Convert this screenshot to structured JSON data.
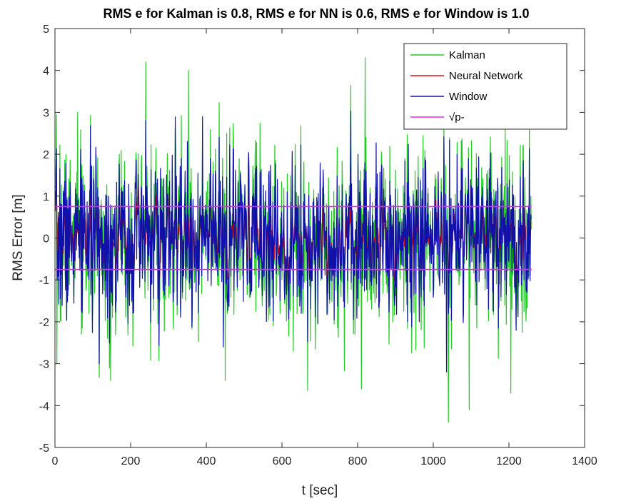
{
  "chart_data": {
    "type": "line",
    "title": "RMS e for Kalman is 0.8, RMS e for NN is 0.6, RMS e for Window is 1.0",
    "xlabel": "t [sec]",
    "ylabel": "RMS Error [m]",
    "xlim": [
      0,
      1400
    ],
    "ylim": [
      -5,
      5
    ],
    "xticks": [
      0,
      200,
      400,
      600,
      800,
      1000,
      1200,
      1400
    ],
    "yticks": [
      -5,
      -4,
      -3,
      -2,
      -1,
      0,
      1,
      2,
      3,
      4,
      5
    ],
    "grid": false,
    "legend_position": "top-right",
    "x_range": [
      0,
      1260
    ],
    "series": [
      {
        "name": "Kalman",
        "color": "#22cc22",
        "approx_rms": 0.8,
        "peaks": [
          [
            60,
            3.0
          ],
          [
            147,
            -3.4
          ],
          [
            240,
            4.2
          ],
          [
            353,
            4.0
          ],
          [
            450,
            -3.4
          ],
          [
            630,
            -2.7
          ],
          [
            820,
            4.3
          ],
          [
            810,
            -3.6
          ],
          [
            1040,
            -4.4
          ],
          [
            1095,
            -4.1
          ],
          [
            1205,
            -3.7
          ],
          [
            1190,
            2.6
          ],
          [
            5,
            -3.0
          ]
        ]
      },
      {
        "name": "Neural Network",
        "color": "#dd1111",
        "approx_rms": 0.6
      },
      {
        "name": "Window",
        "color": "#1111aa",
        "approx_rms": 1.0,
        "peaks": [
          [
            240,
            2.8
          ],
          [
            350,
            2.3
          ],
          [
            1035,
            -3.2
          ],
          [
            445,
            -2.6
          ]
        ]
      },
      {
        "name": "√p-",
        "color": "#ee22ee",
        "constant_levels": [
          0.75,
          -0.75
        ]
      }
    ]
  }
}
